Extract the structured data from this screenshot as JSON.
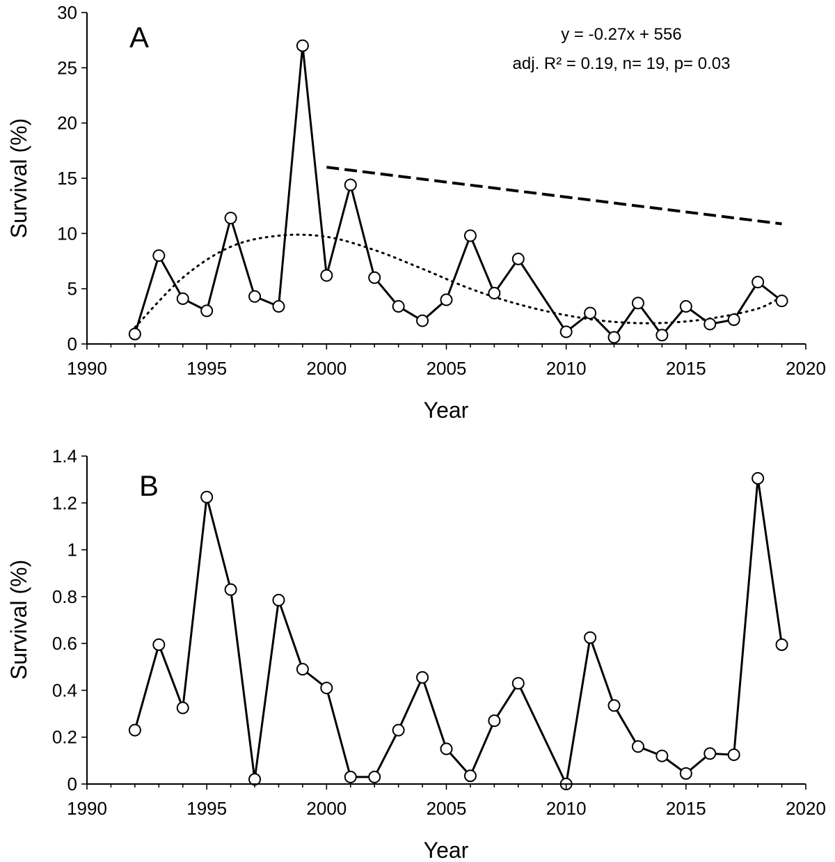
{
  "chart_data": [
    {
      "type": "line",
      "panel_label": "A",
      "xlabel": "Year",
      "ylabel": "Survival (%)",
      "xlim": [
        1990,
        2020
      ],
      "ylim": [
        0,
        30
      ],
      "xticks": [
        1990,
        1995,
        2000,
        2005,
        2010,
        2015,
        2020
      ],
      "yticks": [
        0,
        5,
        10,
        15,
        20,
        25,
        30
      ],
      "x": [
        1992,
        1993,
        1994,
        1995,
        1996,
        1997,
        1998,
        1999,
        2000,
        2001,
        2002,
        2003,
        2004,
        2005,
        2006,
        2007,
        2008,
        2009,
        2010,
        2011,
        2012,
        2013,
        2014,
        2015,
        2016,
        2017,
        2018,
        2019
      ],
      "values": [
        0.9,
        8.0,
        4.1,
        3.0,
        11.4,
        4.3,
        3.4,
        27.0,
        6.2,
        14.4,
        6.0,
        3.4,
        2.1,
        4.0,
        9.8,
        4.6,
        7.7,
        null,
        1.1,
        2.8,
        0.6,
        3.7,
        0.8,
        3.4,
        1.8,
        2.2,
        5.6,
        3.9
      ],
      "series_note": "2009 point not plotted; line connects 2008 to 2010",
      "linear_fit": {
        "x_range": [
          2000,
          2019
        ],
        "slope": -0.27,
        "intercept": 556,
        "style": "dashed"
      },
      "smooth_trend": {
        "style": "dotted",
        "x": [
          1992,
          1994,
          1996,
          1998,
          2000,
          2002,
          2004,
          2006,
          2008,
          2010,
          2012,
          2014,
          2016,
          2018,
          2019
        ],
        "y": [
          1.5,
          6.0,
          8.8,
          9.8,
          9.7,
          8.5,
          6.8,
          5.0,
          3.6,
          2.6,
          2.0,
          1.9,
          2.3,
          3.2,
          4.3
        ]
      },
      "annotation_lines": [
        "y = -0.27x + 556",
        "adj. R² = 0.19, n= 19, p= 0.03"
      ]
    },
    {
      "type": "line",
      "panel_label": "B",
      "xlabel": "Year",
      "ylabel": "Survival (%)",
      "xlim": [
        1990,
        2020
      ],
      "ylim": [
        0,
        1.4
      ],
      "xticks": [
        1990,
        1995,
        2000,
        2005,
        2010,
        2015,
        2020
      ],
      "yticks": [
        0,
        0.2,
        0.4,
        0.6,
        0.8,
        1,
        1.2,
        1.4
      ],
      "ytick_labels": [
        "0",
        "0.2",
        "0.4",
        "0.6",
        "0.8",
        "1",
        "1.2",
        "1.4"
      ],
      "x": [
        1992,
        1993,
        1994,
        1995,
        1996,
        1997,
        1998,
        1999,
        2000,
        2001,
        2002,
        2003,
        2004,
        2005,
        2006,
        2007,
        2008,
        2009,
        2010,
        2011,
        2012,
        2013,
        2014,
        2015,
        2016,
        2017,
        2018,
        2019
      ],
      "values": [
        0.23,
        0.595,
        0.325,
        1.225,
        0.83,
        0.02,
        0.785,
        0.49,
        0.41,
        0.03,
        0.03,
        0.23,
        0.455,
        0.15,
        0.035,
        0.27,
        0.43,
        null,
        0.0,
        0.625,
        0.335,
        0.16,
        0.12,
        0.045,
        0.13,
        0.125,
        1.305,
        0.595
      ],
      "series_note": "2009 point not plotted; line connects 2008 to 2010"
    }
  ]
}
